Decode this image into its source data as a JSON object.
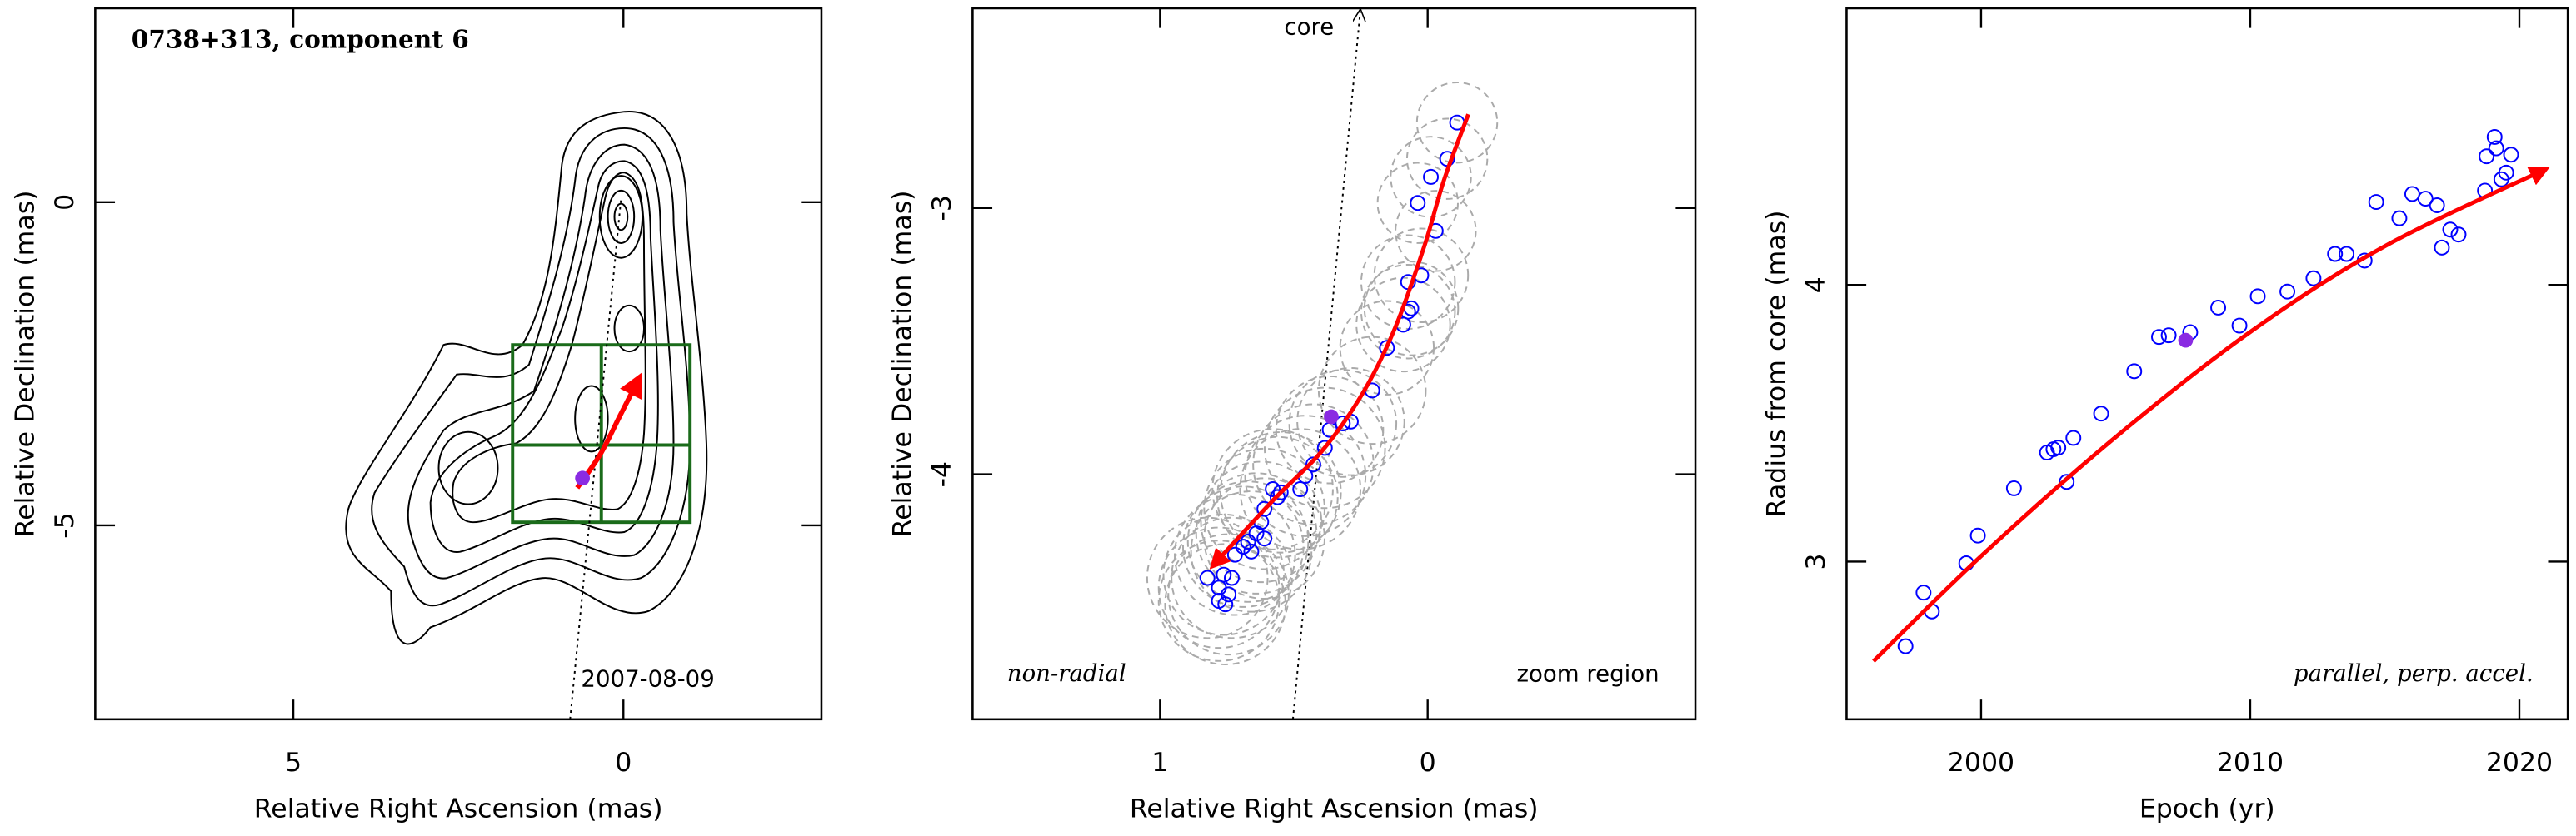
{
  "chart_data": [
    {
      "type": "scatter",
      "title": "0738+313, component 6",
      "annotations": [
        "2007-08-09"
      ],
      "xlabel": "Relative Right Ascension (mas)",
      "ylabel": "Relative Declination (mas)",
      "xlim": [
        8,
        -3
      ],
      "ylim": [
        -8,
        3
      ],
      "xticks": [
        5,
        0
      ],
      "yticks": [
        0,
        -5
      ],
      "highlight": {
        "x": [
          0.62
        ],
        "y": [
          -4.27
        ],
        "color": "#8a2be2"
      },
      "fit": {
        "x": [
          0.7,
          0.35,
          0.05,
          -0.25
        ],
        "y": [
          -4.42,
          -3.9,
          -3.3,
          -2.7
        ],
        "color": "#ff0000"
      }
    },
    {
      "type": "scatter",
      "annotations": [
        "core",
        "non-radial",
        "zoom region"
      ],
      "xlabel": "Relative Right Ascension (mas)",
      "ylabel": "Relative Declination (mas)",
      "xlim": [
        1.7,
        -1
      ],
      "ylim": [
        -4.92,
        -2.25
      ],
      "xticks": [
        1,
        0
      ],
      "yticks": [
        -3,
        -4
      ],
      "points": {
        "color": "#0000ff",
        "x": [
          -0.11,
          -0.073,
          -0.012,
          0.037,
          -0.03,
          0.024,
          0.073,
          0.073,
          0.061,
          0.091,
          0.152,
          0.207,
          0.287,
          0.317,
          0.366,
          0.384,
          0.427,
          0.457,
          0.476,
          0.549,
          0.579,
          0.561,
          0.61,
          0.622,
          0.64,
          0.61,
          0.671,
          0.689,
          0.659,
          0.72,
          0.732,
          0.762,
          0.78,
          0.823,
          0.744,
          0.756,
          0.78
        ],
        "y": [
          -2.679,
          -2.815,
          -2.883,
          -2.981,
          -3.086,
          -3.253,
          -3.278,
          -3.389,
          -3.377,
          -3.438,
          -3.525,
          -3.685,
          -3.802,
          -3.809,
          -3.833,
          -3.901,
          -3.963,
          -4.006,
          -4.056,
          -4.068,
          -4.056,
          -4.086,
          -4.13,
          -4.179,
          -4.222,
          -4.241,
          -4.253,
          -4.272,
          -4.29,
          -4.302,
          -4.389,
          -4.377,
          -4.426,
          -4.389,
          -4.451,
          -4.488,
          -4.475
        ],
        "sizes": [
          0.3,
          0.3,
          0.3,
          0.3,
          0.3,
          0.35,
          0.35,
          0.35,
          0.35,
          0.35,
          0.35,
          0.4,
          0.4,
          0.4,
          0.4,
          0.45,
          0.45,
          0.45,
          0.45,
          0.45,
          0.45,
          0.45,
          0.45,
          0.45,
          0.45,
          0.45,
          0.45,
          0.45,
          0.45,
          0.45,
          0.45,
          0.45,
          0.45,
          0.45,
          0.45,
          0.45,
          0.45
        ]
      },
      "highlight": {
        "x": [
          0.36
        ],
        "y": [
          -3.784
        ],
        "color": "#8a2be2"
      },
      "fit": {
        "x": [
          -0.152,
          -0.061,
          0.012,
          0.122,
          0.244,
          0.396,
          0.579,
          0.805
        ],
        "y": [
          -2.648,
          -2.895,
          -3.142,
          -3.451,
          -3.698,
          -3.914,
          -4.099,
          -4.346
        ],
        "color": "#ff0000"
      }
    },
    {
      "type": "scatter",
      "annotations": [
        "parallel, perp. accel."
      ],
      "xlabel": "Epoch (yr)",
      "ylabel": "Radius from core (mas)",
      "xlim": [
        1995,
        2021.8
      ],
      "ylim": [
        2.43,
        5
      ],
      "xticks": [
        2000,
        2010,
        2020
      ],
      "yticks": [
        3,
        4
      ],
      "points": {
        "color": "#0000ff",
        "x": [
          1997.19,
          1997.86,
          1998.17,
          1999.45,
          1999.88,
          2001.22,
          2002.45,
          2002.69,
          2002.87,
          2003.43,
          2003.18,
          2004.46,
          2005.69,
          2006.61,
          2006.97,
          2007.77,
          2008.81,
          2009.6,
          2010.28,
          2011.38,
          2012.35,
          2013.15,
          2013.58,
          2014.25,
          2014.68,
          2015.54,
          2016.02,
          2016.51,
          2016.94,
          2017.12,
          2017.43,
          2017.74,
          2018.72,
          2018.78,
          2019.08,
          2019.14,
          2019.33,
          2019.69,
          2019.51
        ],
        "y": [
          2.694,
          2.888,
          2.82,
          2.994,
          3.094,
          3.265,
          3.394,
          3.406,
          3.412,
          3.447,
          3.288,
          3.535,
          3.688,
          3.812,
          3.818,
          3.829,
          3.918,
          3.853,
          3.959,
          3.976,
          4.024,
          4.112,
          4.112,
          4.088,
          4.3,
          4.241,
          4.329,
          4.312,
          4.288,
          4.135,
          4.2,
          4.182,
          4.341,
          4.465,
          4.535,
          4.494,
          4.382,
          4.471,
          4.406
        ]
      },
      "highlight": {
        "x": [
          2007.6
        ],
        "y": [
          3.8
        ],
        "color": "#8a2be2"
      },
      "fit": {
        "x": [
          1996,
          2000,
          2005,
          2010,
          2015,
          2021
        ],
        "y": [
          2.64,
          3.02,
          3.45,
          3.83,
          4.14,
          4.42
        ],
        "color": "#ff0000"
      }
    }
  ]
}
